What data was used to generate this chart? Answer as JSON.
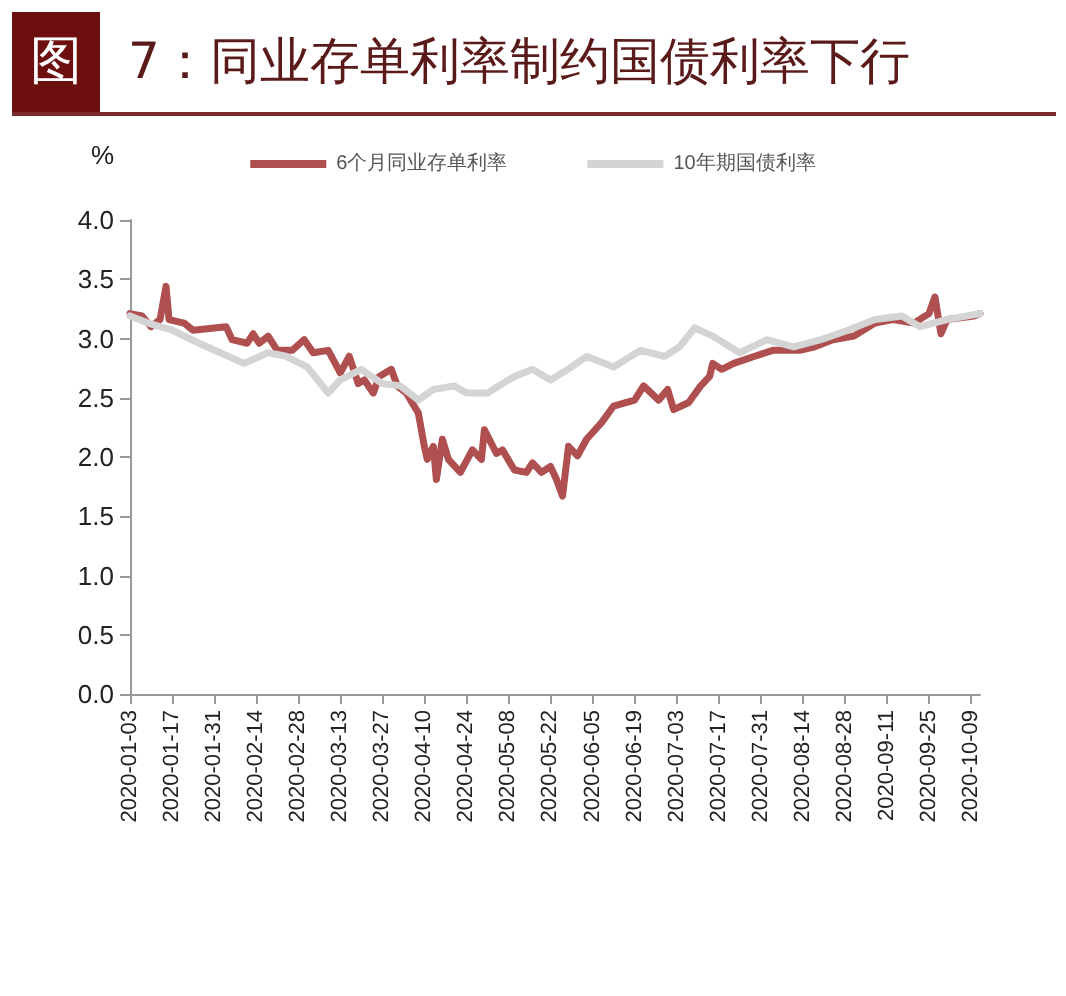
{
  "chart_data": {
    "type": "line",
    "title": "图 7：同业存单利率制约国债利率下行",
    "ylabel": "%",
    "xlim": [
      "2020-01-03",
      "2020-10-12"
    ],
    "xticks": [
      "2020-01-03",
      "2020-01-17",
      "2020-01-31",
      "2020-02-14",
      "2020-02-28",
      "2020-03-13",
      "2020-03-27",
      "2020-04-10",
      "2020-04-24",
      "2020-05-08",
      "2020-05-22",
      "2020-06-05",
      "2020-06-19",
      "2020-07-03",
      "2020-07-17",
      "2020-07-31",
      "2020-08-14",
      "2020-08-28",
      "2020-09-11",
      "2020-09-25",
      "2020-10-09"
    ],
    "ylim": [
      0,
      4
    ],
    "yticks": [
      {
        "value": 0,
        "label": "0.0"
      },
      {
        "value": 0.5,
        "label": "0.5"
      },
      {
        "value": 1,
        "label": "1.0"
      },
      {
        "value": 1.5,
        "label": "1.5"
      },
      {
        "value": 2,
        "label": "2.0"
      },
      {
        "value": 2.5,
        "label": "2.5"
      },
      {
        "value": 3,
        "label": "3.0"
      },
      {
        "value": 3.5,
        "label": "3.5"
      },
      {
        "value": 4,
        "label": "4.0"
      }
    ],
    "grid": false,
    "legend": "top",
    "marker": "none",
    "line_style": "solid",
    "series": [
      {
        "name": "6个月同业存单利率",
        "color": "#b04f4f",
        "x": [
          "2020-01-03",
          "2020-01-07",
          "2020-01-10",
          "2020-01-13",
          "2020-01-15",
          "2020-01-16",
          "2020-01-21",
          "2020-01-24",
          "2020-02-04",
          "2020-02-06",
          "2020-02-11",
          "2020-02-13",
          "2020-02-15",
          "2020-02-18",
          "2020-02-21",
          "2020-02-26",
          "2020-03-01",
          "2020-03-04",
          "2020-03-09",
          "2020-03-13",
          "2020-03-16",
          "2020-03-19",
          "2020-03-21",
          "2020-03-24",
          "2020-03-26",
          "2020-03-30",
          "2020-04-01",
          "2020-04-04",
          "2020-04-08",
          "2020-04-10",
          "2020-04-11",
          "2020-04-13",
          "2020-04-14",
          "2020-04-16",
          "2020-04-18",
          "2020-04-22",
          "2020-04-26",
          "2020-04-29",
          "2020-04-30",
          "2020-05-04",
          "2020-05-06",
          "2020-05-10",
          "2020-05-14",
          "2020-05-16",
          "2020-05-19",
          "2020-05-22",
          "2020-05-24",
          "2020-05-26",
          "2020-05-28",
          "2020-05-31",
          "2020-06-03",
          "2020-06-08",
          "2020-06-12",
          "2020-06-19",
          "2020-06-22",
          "2020-06-27",
          "2020-06-30",
          "2020-07-02",
          "2020-07-07",
          "2020-07-11",
          "2020-07-14",
          "2020-07-15",
          "2020-07-18",
          "2020-07-22",
          "2020-07-29",
          "2020-08-04",
          "2020-08-13",
          "2020-08-18",
          "2020-08-24",
          "2020-08-31",
          "2020-09-07",
          "2020-09-13",
          "2020-09-20",
          "2020-09-25",
          "2020-09-27",
          "2020-09-29",
          "2020-10-01",
          "2020-10-10",
          "2020-10-12"
        ],
        "values": [
          3.21,
          3.19,
          3.1,
          3.16,
          3.44,
          3.16,
          3.13,
          3.07,
          3.1,
          2.99,
          2.96,
          3.04,
          2.96,
          3.02,
          2.9,
          2.9,
          2.99,
          2.88,
          2.9,
          2.71,
          2.85,
          2.62,
          2.65,
          2.54,
          2.68,
          2.74,
          2.6,
          2.54,
          2.37,
          2.09,
          1.98,
          2.09,
          1.81,
          2.15,
          1.98,
          1.87,
          2.06,
          1.98,
          2.23,
          2.03,
          2.06,
          1.89,
          1.87,
          1.95,
          1.87,
          1.92,
          1.81,
          1.67,
          2.09,
          2.01,
          2.15,
          2.29,
          2.43,
          2.48,
          2.6,
          2.48,
          2.57,
          2.4,
          2.46,
          2.6,
          2.68,
          2.79,
          2.74,
          2.79,
          2.85,
          2.9,
          2.9,
          2.93,
          2.99,
          3.02,
          3.13,
          3.16,
          3.13,
          3.21,
          3.35,
          3.04,
          3.16,
          3.19,
          3.21
        ]
      },
      {
        "name": "10年期国债利率",
        "color": "#d4d4d4",
        "x": [
          "2020-01-03",
          "2020-01-09",
          "2020-01-17",
          "2020-01-26",
          "2020-02-02",
          "2020-02-10",
          "2020-02-18",
          "2020-02-24",
          "2020-03-02",
          "2020-03-09",
          "2020-03-13",
          "2020-03-20",
          "2020-03-27",
          "2020-04-02",
          "2020-04-08",
          "2020-04-13",
          "2020-04-20",
          "2020-04-24",
          "2020-05-01",
          "2020-05-10",
          "2020-05-16",
          "2020-05-22",
          "2020-05-29",
          "2020-06-03",
          "2020-06-12",
          "2020-06-21",
          "2020-06-29",
          "2020-07-04",
          "2020-07-09",
          "2020-07-15",
          "2020-07-24",
          "2020-08-02",
          "2020-08-11",
          "2020-08-20",
          "2020-08-29",
          "2020-09-07",
          "2020-09-16",
          "2020-09-22",
          "2020-10-01",
          "2020-10-12"
        ],
        "values": [
          3.19,
          3.13,
          3.07,
          2.96,
          2.88,
          2.79,
          2.88,
          2.85,
          2.76,
          2.54,
          2.65,
          2.74,
          2.62,
          2.6,
          2.48,
          2.57,
          2.6,
          2.54,
          2.54,
          2.68,
          2.74,
          2.65,
          2.76,
          2.85,
          2.76,
          2.9,
          2.85,
          2.93,
          3.09,
          3.02,
          2.88,
          2.99,
          2.93,
          2.99,
          3.07,
          3.16,
          3.19,
          3.1,
          3.16,
          3.21
        ]
      }
    ]
  }
}
